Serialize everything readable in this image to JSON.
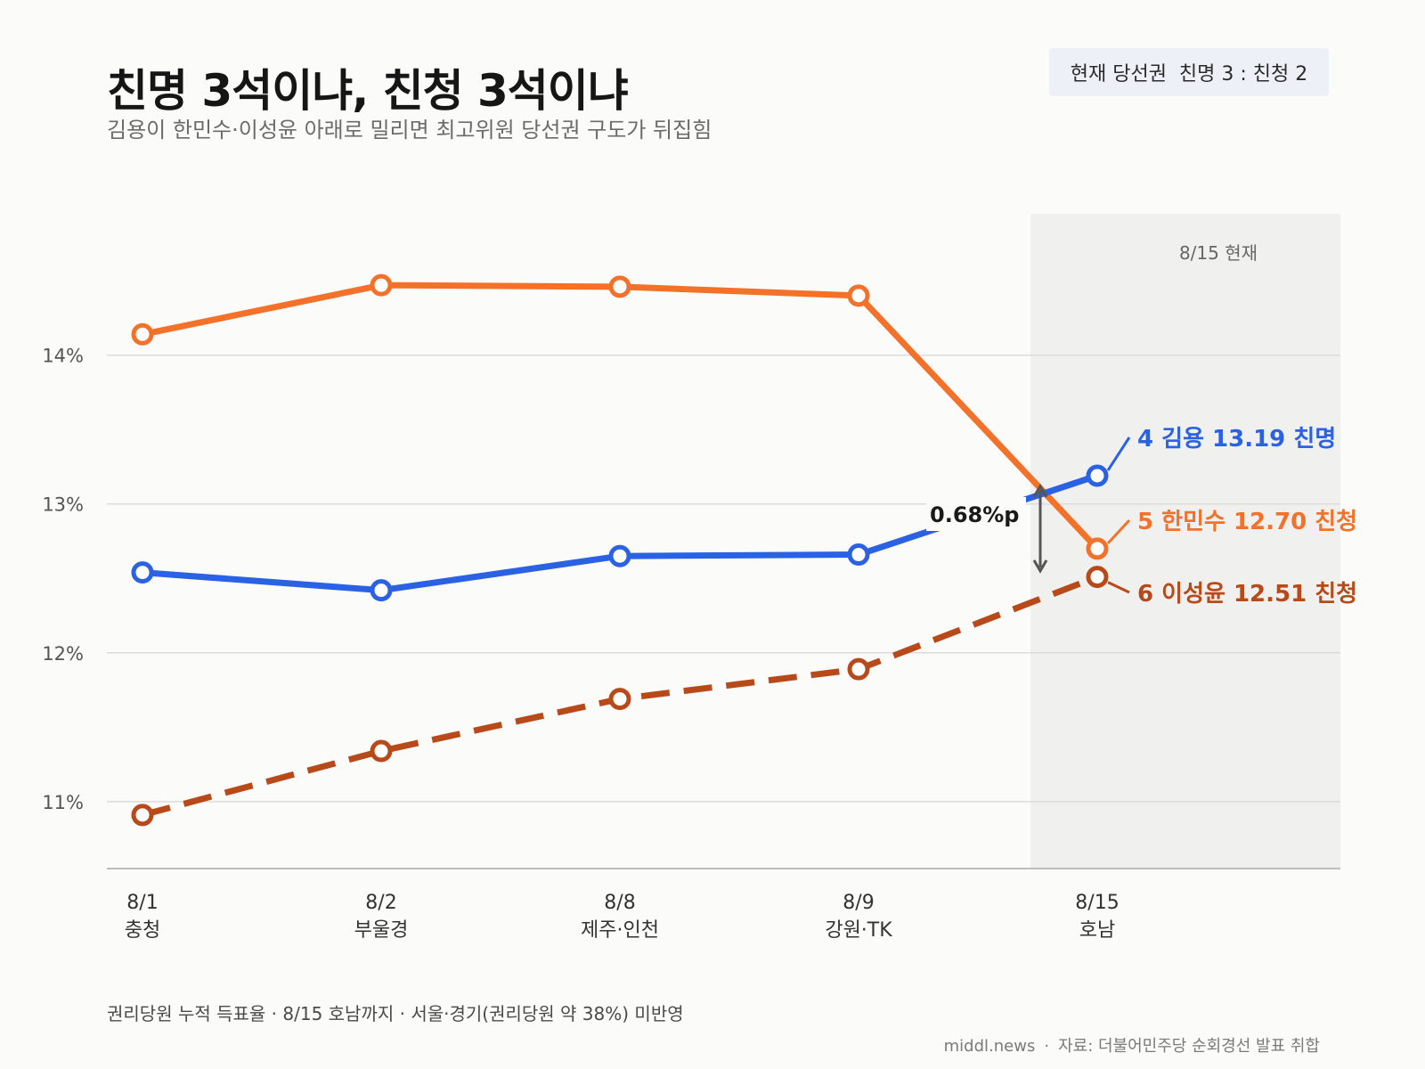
{
  "header": {
    "title": "친명 3석이냐, 친청 3석이냐",
    "subtitle": "김용이 한민수·이성윤 아래로 밀리면 최고위원 당선권 구도가 뒤집힘",
    "badge": "현재 당선권  친명 3 : 친청 2"
  },
  "chart_data": {
    "type": "line",
    "categories": [
      "8/1\n충청",
      "8/2\n부울경",
      "8/8\n제주·인천",
      "8/9\n강원·TK",
      "8/15\n호남"
    ],
    "ylim": [
      10.55,
      14.95
    ],
    "y_ticks": [
      11,
      12,
      13,
      14
    ],
    "y_tick_labels": [
      "11%",
      "12%",
      "13%",
      "14%"
    ],
    "grid": true,
    "highlight": {
      "category_index": 4,
      "label": "8/15 현재"
    },
    "series": [
      {
        "name": "한민수",
        "rank": "5",
        "final_value": "12.70",
        "faction": "친청",
        "color": "#f4712a",
        "dashed": false,
        "values": [
          14.14,
          14.47,
          14.46,
          14.4,
          12.7
        ]
      },
      {
        "name": "김용",
        "rank": "4",
        "final_value": "13.19",
        "faction": "친명",
        "color": "#2a62e3",
        "dashed": false,
        "values": [
          12.54,
          12.42,
          12.65,
          12.66,
          13.19
        ]
      },
      {
        "name": "이성윤",
        "rank": "6",
        "final_value": "12.51",
        "faction": "친청",
        "color": "#b84a1a",
        "dashed": true,
        "values": [
          10.91,
          11.34,
          11.69,
          11.89,
          12.51
        ]
      }
    ],
    "annotation": {
      "text": "0.68%p",
      "from_value": 13.12,
      "to_value": 12.55
    }
  },
  "footer": {
    "note": "권리당원 누적 득표율 · 8/15 호남까지 · 서울·경기(권리당원 약 38%) 미반영",
    "site": "middl.news",
    "separator": "·",
    "source": "자료: 더불어민주당 순회경선 발표 취합"
  }
}
